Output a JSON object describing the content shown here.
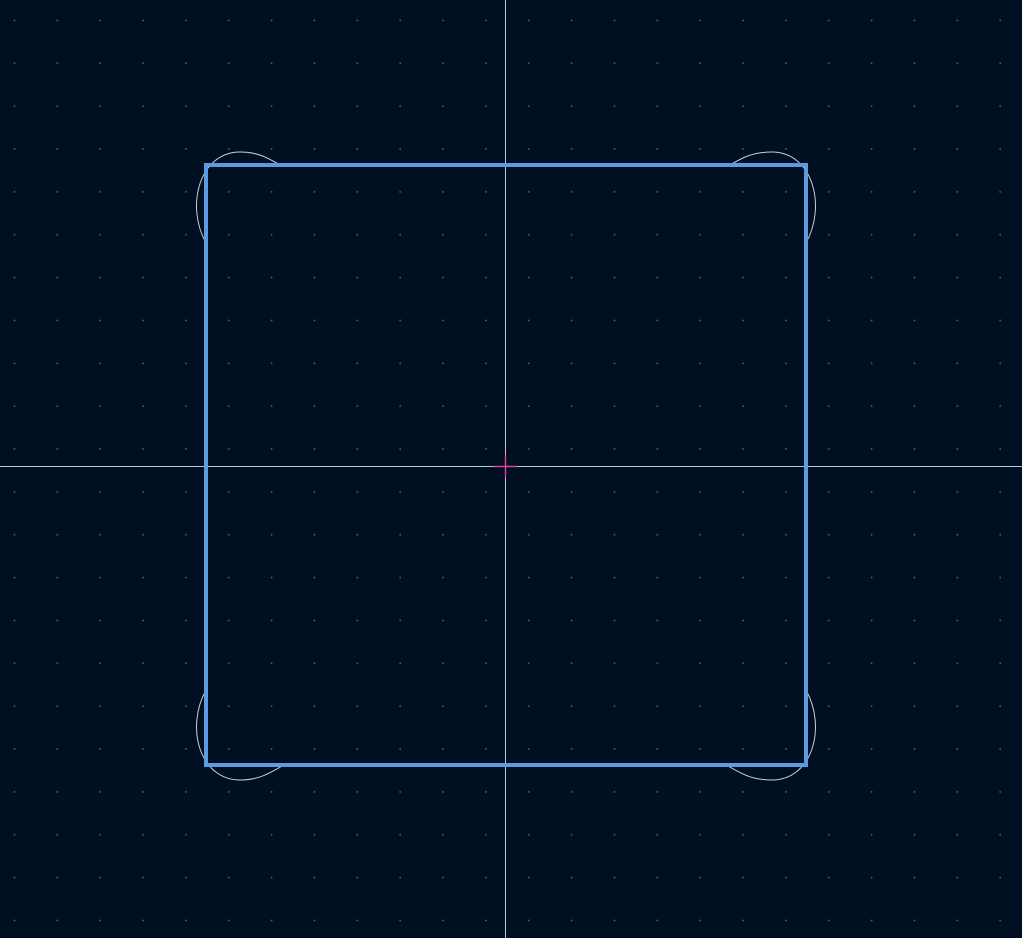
{
  "canvas": {
    "background_color": "#000f21",
    "grid_dot_color": "#4a5e72",
    "grid_visible": true,
    "axis_color": "#b8c8d8",
    "origin_marker_color": "#e0409c",
    "outline_color": "#5b9be0",
    "fillet_preview_color": "#c8d0d8"
  },
  "icons": {
    "origin_marker": "crosshair-icon"
  }
}
